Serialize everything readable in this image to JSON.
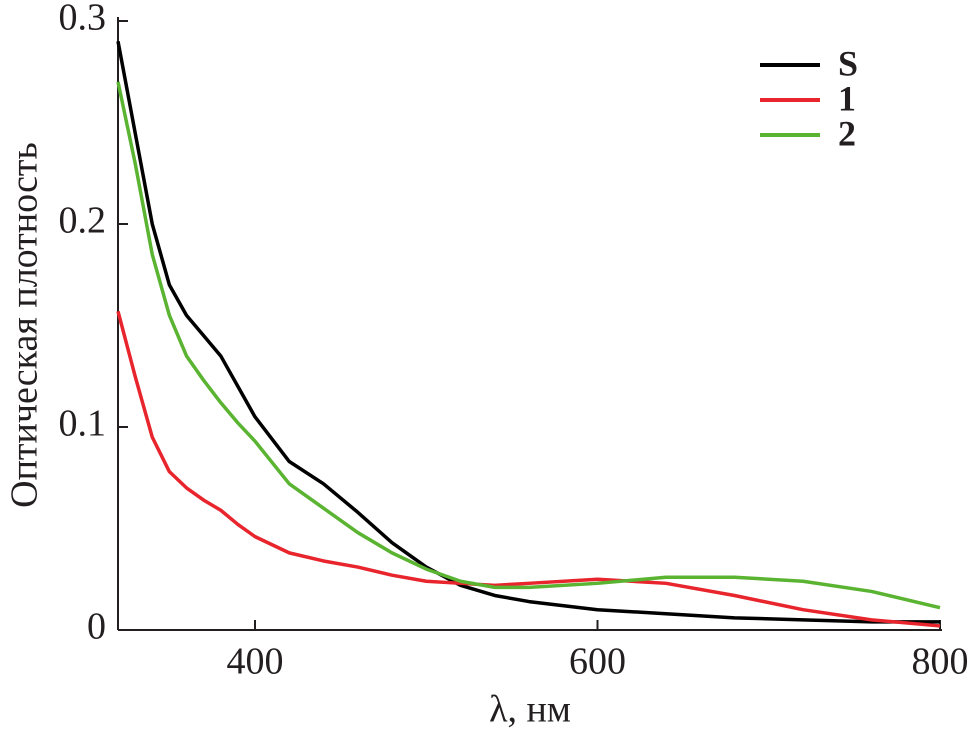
{
  "chart_data": {
    "type": "line",
    "x_label": "λ, нм",
    "y_label": "Оптическая плотность",
    "x": [
      320,
      330,
      340,
      350,
      360,
      370,
      380,
      390,
      400,
      420,
      440,
      460,
      480,
      500,
      520,
      540,
      560,
      600,
      640,
      680,
      720,
      760,
      800
    ],
    "series": [
      {
        "name": "S",
        "color": "#000000",
        "values": [
          0.29,
          0.245,
          0.2,
          0.17,
          0.155,
          0.145,
          0.135,
          0.12,
          0.105,
          0.083,
          0.072,
          0.058,
          0.043,
          0.031,
          0.022,
          0.017,
          0.014,
          0.01,
          0.008,
          0.006,
          0.005,
          0.004,
          0.004
        ]
      },
      {
        "name": "1",
        "color": "#e8242c",
        "values": [
          0.157,
          0.125,
          0.095,
          0.078,
          0.07,
          0.064,
          0.059,
          0.052,
          0.046,
          0.038,
          0.034,
          0.031,
          0.027,
          0.024,
          0.023,
          0.022,
          0.023,
          0.025,
          0.023,
          0.017,
          0.01,
          0.005,
          0.002
        ]
      },
      {
        "name": "2",
        "color": "#5ab432",
        "values": [
          0.27,
          0.23,
          0.185,
          0.155,
          0.135,
          0.123,
          0.112,
          0.102,
          0.093,
          0.072,
          0.06,
          0.048,
          0.038,
          0.03,
          0.024,
          0.021,
          0.021,
          0.023,
          0.026,
          0.026,
          0.024,
          0.019,
          0.011
        ]
      }
    ],
    "xlim": [
      320,
      800
    ],
    "xticks": [
      400,
      600,
      800
    ],
    "ylim": [
      0,
      0.3
    ],
    "yticks": [
      0,
      0.1,
      0.2,
      0.3
    ],
    "legend": "upper-right"
  }
}
